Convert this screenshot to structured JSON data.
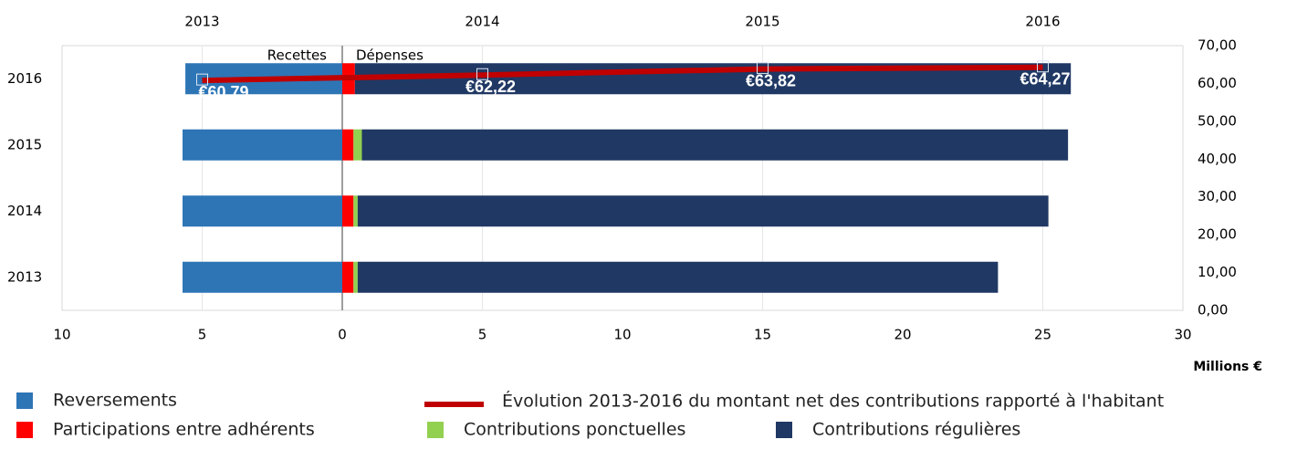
{
  "chart_data": [
    {
      "type": "bar",
      "orientation": "horizontal",
      "categories": [
        "2013",
        "2014",
        "2015",
        "2016"
      ],
      "series": [
        {
          "name": "Reversements",
          "color": "#2e75b6",
          "values": [
            -5.7,
            -5.7,
            -5.7,
            -5.6
          ]
        },
        {
          "name": "Participations entre adhérents",
          "color": "#ff0000",
          "values": [
            0.4,
            0.4,
            0.4,
            0.45
          ]
        },
        {
          "name": "Contributions ponctuelles",
          "color": "#92d050",
          "values": [
            0.15,
            0.15,
            0.3,
            0
          ]
        },
        {
          "name": "Contributions régulières",
          "color": "#203864",
          "values": [
            22.85,
            24.65,
            25.2,
            25.55
          ]
        }
      ],
      "xlim": [
        -10,
        30
      ],
      "xticks": [
        {
          "value": -10,
          "label": "10"
        },
        {
          "value": -5,
          "label": "5"
        },
        0,
        5,
        10,
        15,
        20,
        25,
        30
      ],
      "x_label": "Millions €",
      "annotations": [
        "Recettes",
        "Dépenses"
      ]
    },
    {
      "type": "line",
      "x": [
        2013,
        2014,
        2015,
        2016
      ],
      "xlim": [
        2012.5,
        2016.5
      ],
      "xticks": [
        2013,
        2014,
        2015,
        2016
      ],
      "series": [
        {
          "name": "Évolution 2013-2016 du montant net des contributions rapporté à l'habitant",
          "color": "#c00000",
          "axis": "y2",
          "values": [
            60.79,
            62.22,
            63.82,
            64.27
          ],
          "value_labels": [
            "€60,79",
            "€62,22",
            "€63,82",
            "€64,27"
          ]
        }
      ],
      "y2lim": [
        0,
        70
      ],
      "y2ticks": [
        {
          "value": 0,
          "label": "0,00"
        },
        {
          "value": 10,
          "label": "10,00"
        },
        {
          "value": 20,
          "label": "20,00"
        },
        {
          "value": 30,
          "label": "30,00"
        },
        {
          "value": 40,
          "label": "40,00"
        },
        {
          "value": 50,
          "label": "50,00"
        },
        {
          "value": 60,
          "label": "60,00"
        },
        {
          "value": 70,
          "label": "70,00"
        }
      ],
      "grid": true
    }
  ]
}
